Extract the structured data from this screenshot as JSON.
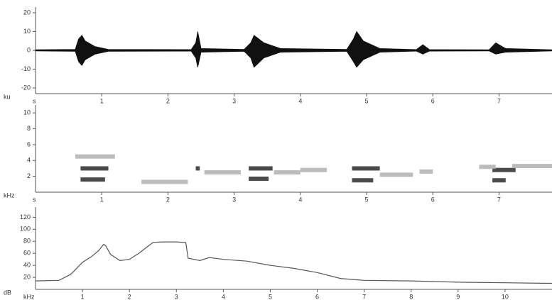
{
  "chart_data": [
    {
      "type": "waveform",
      "ylabel": "ku",
      "xlabel": "s",
      "xlim": [
        0,
        7.8
      ],
      "xticks": [
        1,
        2,
        3,
        4,
        5,
        6,
        7
      ],
      "ylim": [
        -23,
        23
      ],
      "yticks": [
        -20,
        -10,
        0,
        10,
        20
      ],
      "color": "#111111",
      "x": [
        0,
        0.6,
        0.65,
        0.7,
        0.75,
        0.9,
        1.1,
        2.35,
        2.42,
        2.45,
        2.5,
        3.15,
        3.25,
        3.3,
        3.45,
        3.7,
        4.7,
        4.8,
        4.85,
        4.95,
        5.2,
        5.75,
        5.85,
        5.95,
        6.85,
        6.95,
        7.1,
        7.8
      ],
      "series": [
        {
          "values": [
            0.3,
            0.5,
            6,
            8,
            5,
            2,
            0.5,
            0.4,
            4,
            10,
            1,
            0.5,
            4,
            8,
            4,
            1,
            0.5,
            6,
            10,
            5,
            1,
            0.4,
            3,
            0.4,
            0.3,
            4,
            1,
            0.3
          ]
        },
        {
          "values": [
            -0.3,
            -0.5,
            -6,
            -8,
            -5,
            -2,
            -0.5,
            -0.4,
            -4,
            -9,
            -1,
            -0.5,
            -4,
            -9,
            -4,
            -1,
            -0.5,
            -6,
            -9,
            -5,
            -1,
            -0.4,
            -2,
            -0.4,
            -0.3,
            -2,
            -1,
            -0.3
          ]
        }
      ]
    },
    {
      "type": "spectrogram",
      "ylabel": "kHz",
      "xlabel": "s",
      "xlim": [
        0,
        7.8
      ],
      "xticks": [
        1,
        2,
        3,
        4,
        5,
        6,
        7
      ],
      "ylim": [
        0,
        11
      ],
      "yticks": [
        2,
        4,
        6,
        8,
        10
      ],
      "series": [
        {
          "color": "#2a2a2a",
          "x_start": [
            0.68,
            0.68,
            2.42,
            3.22,
            3.22,
            4.78,
            4.78,
            6.9,
            6.9
          ],
          "x_end": [
            1.1,
            1.05,
            2.48,
            3.58,
            3.52,
            5.2,
            5.1,
            7.25,
            7.1
          ],
          "y": [
            3.0,
            1.6,
            3.0,
            3.0,
            1.7,
            3.0,
            1.5,
            2.8,
            1.5
          ]
        },
        {
          "color": "#b0b0b0",
          "x_start": [
            0.6,
            1.6,
            2.55,
            3.6,
            4.0,
            5.2,
            5.8,
            6.7,
            7.2
          ],
          "x_end": [
            1.2,
            2.3,
            3.1,
            4.0,
            4.4,
            5.7,
            6.0,
            6.95,
            7.8
          ],
          "y": [
            4.5,
            1.3,
            2.5,
            2.5,
            2.8,
            2.2,
            2.6,
            3.2,
            3.3
          ]
        }
      ]
    },
    {
      "type": "line",
      "ylabel": "dB",
      "xlabel": "kHz",
      "xlim": [
        0,
        11
      ],
      "xticks": [
        1,
        2,
        3,
        4,
        5,
        6,
        7,
        8,
        9,
        10
      ],
      "ylim": [
        0,
        137
      ],
      "yticks": [
        20,
        40,
        60,
        80,
        100,
        120
      ],
      "color": "#555555",
      "x": [
        0,
        0.5,
        0.75,
        1.0,
        1.2,
        1.35,
        1.45,
        1.5,
        1.6,
        1.8,
        2.0,
        2.2,
        2.4,
        2.5,
        2.7,
        3.0,
        3.2,
        3.25,
        3.5,
        3.7,
        4.0,
        4.5,
        5.0,
        5.5,
        6.0,
        6.5,
        7.0,
        8.0,
        9.0,
        10.0,
        11.0
      ],
      "values": [
        14,
        15,
        25,
        45,
        55,
        65,
        75,
        72,
        58,
        48,
        50,
        60,
        72,
        78,
        79,
        79,
        78,
        52,
        48,
        53,
        50,
        47,
        40,
        35,
        28,
        18,
        15,
        14,
        12,
        11,
        10
      ]
    }
  ]
}
